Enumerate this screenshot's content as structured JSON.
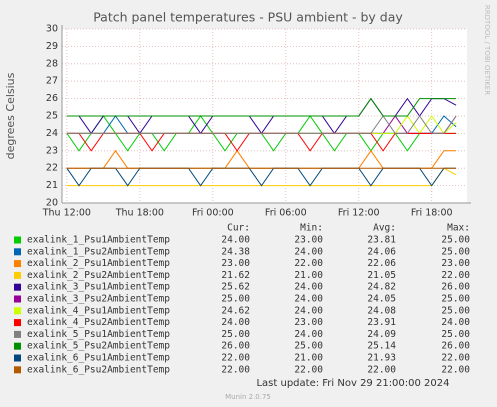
{
  "chart_data": {
    "type": "line",
    "title": "Patch panel temperatures - PSU ambient - by day",
    "y_label": "degrees Celsius",
    "side_label": "RRDTOOL / TOBI OETIKER",
    "x": [
      0,
      1,
      2,
      3,
      4,
      5,
      6,
      7,
      8,
      9,
      10,
      11,
      12,
      13,
      14,
      15,
      16,
      17,
      18,
      19,
      20,
      21,
      22,
      23,
      24,
      25,
      26,
      27,
      28,
      29,
      30,
      31,
      32
    ],
    "xlim": [
      -0.4,
      32.9
    ],
    "xticks": [
      {
        "value": 0,
        "label": "Thu 12:00"
      },
      {
        "value": 6,
        "label": "Thu 18:00"
      },
      {
        "value": 12,
        "label": "Fri 00:00"
      },
      {
        "value": 18,
        "label": "Fri 06:00"
      },
      {
        "value": 24,
        "label": "Fri 12:00"
      },
      {
        "value": 30,
        "label": "Fri 18:00"
      }
    ],
    "ylim": [
      20,
      30
    ],
    "yticks": [
      20,
      21,
      22,
      23,
      24,
      25,
      26,
      27,
      28,
      29,
      30
    ],
    "grid": true,
    "stat_headers": [
      "Cur:",
      "Min:",
      "Avg:",
      "Max:"
    ],
    "series": [
      {
        "name": "exalink_1_Psu1AmbientTemp",
        "color": "#00cc00",
        "stats": [
          "24.00",
          "23.00",
          "23.81",
          "25.00"
        ],
        "values": [
          24,
          23,
          24,
          25,
          24,
          23,
          24,
          24,
          23,
          24,
          24,
          25,
          24,
          23,
          24,
          24,
          24,
          23,
          24,
          24,
          25,
          24,
          23,
          24,
          24,
          23,
          24,
          24,
          23,
          24,
          24,
          24,
          24
        ]
      },
      {
        "name": "exalink_1_Psu2AmbientTemp",
        "color": "#0066b3",
        "stats": [
          "24.38",
          "24.00",
          "24.06",
          "25.00"
        ],
        "values": [
          24,
          24,
          24,
          24,
          25,
          24,
          24,
          24,
          24,
          24,
          24,
          24,
          24,
          24,
          24,
          24,
          24,
          24,
          24,
          24,
          24,
          24,
          24,
          24,
          24,
          24,
          24,
          24,
          24,
          24,
          24,
          25,
          24.38
        ]
      },
      {
        "name": "exalink_2_Psu1AmbientTemp",
        "color": "#ff8000",
        "stats": [
          "23.00",
          "22.00",
          "22.06",
          "23.00"
        ],
        "values": [
          22,
          22,
          22,
          22,
          23,
          22,
          22,
          22,
          22,
          22,
          22,
          22,
          22,
          22,
          23,
          22,
          22,
          22,
          22,
          22,
          22,
          22,
          22,
          22,
          22,
          23,
          22,
          22,
          22,
          22,
          22,
          23,
          23
        ]
      },
      {
        "name": "exalink_2_Psu2AmbientTemp",
        "color": "#ffcc00",
        "stats": [
          "21.62",
          "21.00",
          "21.05",
          "22.00"
        ],
        "values": [
          21,
          21,
          21,
          21,
          21,
          21,
          21,
          21,
          21,
          21,
          21,
          21,
          21,
          21,
          21,
          21,
          21,
          21,
          21,
          21,
          21,
          21,
          21,
          21,
          21,
          21,
          21,
          21,
          21,
          21,
          21,
          22,
          21.62
        ]
      },
      {
        "name": "exalink_3_Psu1AmbientTemp",
        "color": "#330099",
        "stats": [
          "25.62",
          "24.00",
          "24.82",
          "26.00"
        ],
        "values": [
          25,
          25,
          24,
          25,
          25,
          25,
          24,
          25,
          25,
          25,
          25,
          24,
          25,
          25,
          25,
          25,
          24,
          25,
          25,
          25,
          25,
          25,
          24,
          25,
          25,
          26,
          25,
          25,
          26,
          25,
          26,
          26,
          25.62
        ]
      },
      {
        "name": "exalink_3_Psu2AmbientTemp",
        "color": "#990099",
        "stats": [
          "25.00",
          "24.00",
          "24.05",
          "25.00"
        ],
        "values": [
          24,
          24,
          24,
          24,
          24,
          24,
          24,
          24,
          24,
          24,
          24,
          24,
          24,
          24,
          24,
          24,
          24,
          24,
          24,
          24,
          24,
          24,
          24,
          24,
          24,
          24,
          24,
          25,
          24,
          24,
          24,
          24,
          25
        ]
      },
      {
        "name": "exalink_4_Psu1AmbientTemp",
        "color": "#ccff00",
        "stats": [
          "24.62",
          "24.00",
          "24.08",
          "25.00"
        ],
        "values": [
          24,
          24,
          24,
          24,
          24,
          24,
          24,
          24,
          24,
          24,
          24,
          24,
          24,
          24,
          24,
          24,
          24,
          24,
          24,
          24,
          24,
          24,
          24,
          24,
          24,
          24,
          24,
          24,
          25,
          24,
          25,
          24,
          24.62
        ]
      },
      {
        "name": "exalink_4_Psu2AmbientTemp",
        "color": "#ff0000",
        "stats": [
          "24.00",
          "23.00",
          "23.91",
          "24.00"
        ],
        "values": [
          24,
          24,
          23,
          24,
          24,
          24,
          24,
          23,
          24,
          24,
          24,
          24,
          24,
          24,
          23,
          24,
          24,
          24,
          24,
          24,
          23,
          24,
          24,
          24,
          24,
          24,
          23,
          24,
          24,
          24,
          24,
          24,
          24
        ]
      },
      {
        "name": "exalink_5_Psu1AmbientTemp",
        "color": "#808080",
        "stats": [
          "25.00",
          "24.00",
          "24.09",
          "25.00"
        ],
        "values": [
          24,
          24,
          24,
          24,
          24,
          24,
          24,
          24,
          24,
          24,
          24,
          24,
          24,
          24,
          24,
          24,
          24,
          24,
          24,
          24,
          24,
          24,
          24,
          24,
          24,
          24,
          25,
          24,
          24,
          25,
          24,
          24,
          25
        ]
      },
      {
        "name": "exalink_5_Psu2AmbientTemp",
        "color": "#008f00",
        "stats": [
          "26.00",
          "25.00",
          "25.14",
          "26.00"
        ],
        "values": [
          25,
          25,
          25,
          25,
          25,
          25,
          25,
          25,
          25,
          25,
          25,
          25,
          25,
          25,
          25,
          25,
          25,
          25,
          25,
          25,
          25,
          25,
          25,
          25,
          25,
          26,
          25,
          25,
          25,
          26,
          26,
          26,
          26
        ]
      },
      {
        "name": "exalink_6_Psu1AmbientTemp",
        "color": "#00487d",
        "stats": [
          "22.00",
          "21.00",
          "21.93",
          "22.00"
        ],
        "values": [
          22,
          21,
          22,
          22,
          22,
          21,
          22,
          22,
          22,
          22,
          22,
          21,
          22,
          22,
          22,
          22,
          21,
          22,
          22,
          22,
          21,
          22,
          22,
          22,
          22,
          21,
          22,
          22,
          22,
          22,
          21,
          22,
          22
        ]
      },
      {
        "name": "exalink_6_Psu2AmbientTemp",
        "color": "#b35a00",
        "stats": [
          "22.00",
          "22.00",
          "22.00",
          "22.00"
        ],
        "values": [
          22,
          22,
          22,
          22,
          22,
          22,
          22,
          22,
          22,
          22,
          22,
          22,
          22,
          22,
          22,
          22,
          22,
          22,
          22,
          22,
          22,
          22,
          22,
          22,
          22,
          22,
          22,
          22,
          22,
          22,
          22,
          22,
          22
        ]
      }
    ],
    "footer": "Last update: Fri Nov 29 21:00:00 2024",
    "credit": "Munin 2.0.75"
  }
}
